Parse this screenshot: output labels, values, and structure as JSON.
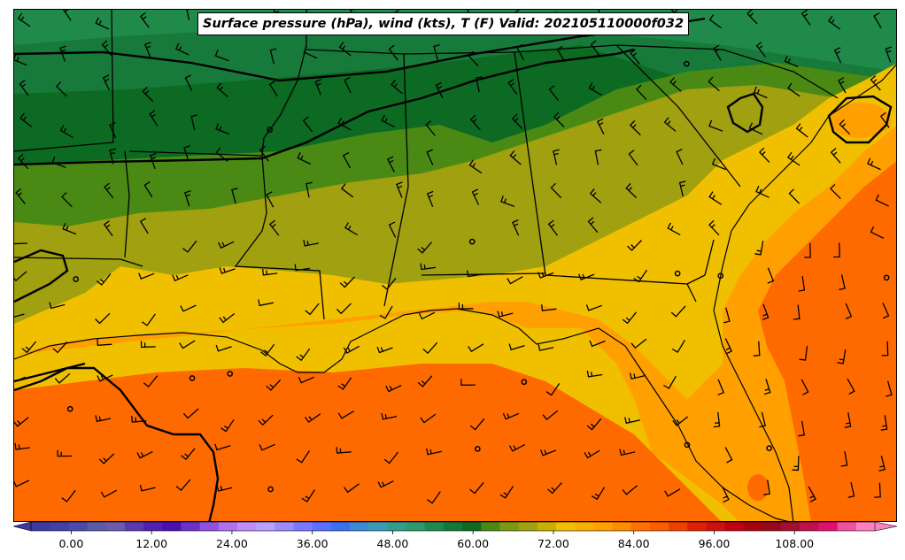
{
  "title": "Surface pressure (hPa), wind (kts), T (F) Valid: 202105110000f032",
  "colorbar": {
    "tick_labels": [
      "0.00",
      "12.00",
      "24.00",
      "36.00",
      "48.00",
      "60.00",
      "72.00",
      "84.00",
      "96.00",
      "108.00"
    ],
    "tick_values": [
      0,
      12,
      24,
      36,
      48,
      60,
      72,
      84,
      96,
      108
    ],
    "min": -6,
    "max": 120,
    "step": 3,
    "extend": "both",
    "colors": [
      "#3a3aa0",
      "#4040a8",
      "#4a4aa8",
      "#5a5aa8",
      "#6a5ab0",
      "#5a3ab0",
      "#5020b0",
      "#4a10b0",
      "#6a30c8",
      "#9050e0",
      "#b070f0",
      "#c08cf8",
      "#b8a0ff",
      "#9a8cff",
      "#7a78ff",
      "#5a70ff",
      "#3a70f0",
      "#3a8ad8",
      "#3a9ab8",
      "#2e9e90",
      "#2a9a70",
      "#1e8a50",
      "#14783a",
      "#0c6a22",
      "#4a8a14",
      "#7a9a14",
      "#a0a010",
      "#c8b000",
      "#f0c000",
      "#f8b000",
      "#ffa000",
      "#ff8c00",
      "#ff7000",
      "#ff5c00",
      "#f04000",
      "#e02000",
      "#d01010",
      "#c00010",
      "#a80010",
      "#980818",
      "#a01030",
      "#c01050",
      "#e01070",
      "#f050a0",
      "#ff80c0"
    ]
  },
  "map_colors": {
    "t_lt50": "#1f8a4a",
    "t_50_55": "#187a3a",
    "t_55_60": "#0c6a22",
    "t_60_65": "#4a8a14",
    "t_65_70": "#a0a010",
    "t_70_75": "#f0c000",
    "t_75_80": "#ffa000",
    "t_80_85": "#ff6a00"
  }
}
